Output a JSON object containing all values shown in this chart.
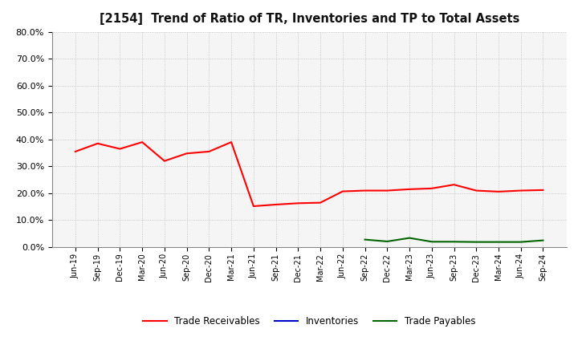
{
  "title": "[2154]  Trend of Ratio of TR, Inventories and TP to Total Assets",
  "x_labels": [
    "Jun-19",
    "Sep-19",
    "Dec-19",
    "Mar-20",
    "Jun-20",
    "Sep-20",
    "Dec-20",
    "Mar-21",
    "Jun-21",
    "Sep-21",
    "Dec-21",
    "Mar-22",
    "Jun-22",
    "Sep-22",
    "Dec-22",
    "Mar-23",
    "Jun-23",
    "Sep-23",
    "Dec-23",
    "Mar-24",
    "Jun-24",
    "Sep-24"
  ],
  "trade_receivables": [
    0.355,
    0.385,
    0.365,
    0.39,
    0.32,
    0.348,
    0.355,
    0.39,
    0.152,
    0.158,
    0.163,
    0.165,
    0.207,
    0.21,
    0.21,
    0.215,
    0.218,
    0.232,
    0.21,
    0.206,
    0.21,
    0.212
  ],
  "inventories": [
    null,
    null,
    null,
    null,
    null,
    null,
    null,
    null,
    null,
    null,
    null,
    null,
    null,
    null,
    null,
    null,
    null,
    null,
    null,
    null,
    null,
    null
  ],
  "trade_payables": [
    null,
    null,
    null,
    null,
    null,
    null,
    null,
    null,
    null,
    null,
    null,
    null,
    null,
    0.028,
    0.021,
    0.034,
    0.02,
    0.02,
    0.019,
    0.019,
    0.019,
    0.025
  ],
  "tr_color": "#FF0000",
  "inv_color": "#0000CC",
  "tp_color": "#006400",
  "ylim": [
    0.0,
    0.8
  ],
  "yticks": [
    0.0,
    0.1,
    0.2,
    0.3,
    0.4,
    0.5,
    0.6,
    0.7,
    0.8
  ],
  "grid_color": "#bbbbbb",
  "bg_color": "#ffffff",
  "plot_bg_color": "#f5f5f5",
  "legend_labels": [
    "Trade Receivables",
    "Inventories",
    "Trade Payables"
  ]
}
